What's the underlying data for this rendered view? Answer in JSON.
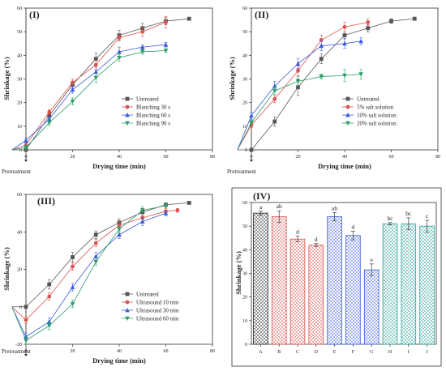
{
  "chart_data": [
    {
      "type": "line",
      "panel": "(I)",
      "xlabel": "Drying time (min)",
      "ylabel": "Shrinkage (%)",
      "xlim": [
        0,
        80
      ],
      "ylim": [
        0,
        60
      ],
      "xticks": [
        0,
        20,
        40,
        60,
        80
      ],
      "yticks": [
        0,
        10,
        20,
        30,
        40,
        50,
        60
      ],
      "pretreatment_label": "Pretreatment",
      "legend_position": "center-right",
      "series": [
        {
          "name": "Untreated",
          "color": "#555555",
          "marker": "square",
          "x": [
            0,
            10,
            20,
            30,
            40,
            50,
            60,
            70
          ],
          "y": [
            0,
            14.5,
            27.5,
            38.5,
            48.5,
            51.5,
            54.5,
            55.5
          ],
          "err": [
            0,
            1.2,
            1.5,
            2.5,
            2,
            2,
            1.5,
            0.5
          ]
        },
        {
          "name": "Blanching 30 s",
          "color": "#d9534f",
          "marker": "circle",
          "x": [
            0,
            10,
            20,
            30,
            40,
            50,
            60
          ],
          "y": [
            2,
            16,
            28.5,
            36,
            47.5,
            50,
            54
          ],
          "err": [
            1,
            1,
            1.5,
            2,
            1.5,
            2,
            2.5
          ]
        },
        {
          "name": "Blanching 60 s",
          "color": "#3b5bdb",
          "marker": "triangle",
          "x": [
            0,
            10,
            20,
            30,
            40,
            50,
            60
          ],
          "y": [
            4,
            13,
            25.5,
            33,
            41.5,
            43.5,
            44.5
          ],
          "err": [
            1,
            1,
            1.5,
            2,
            2,
            1,
            1
          ]
        },
        {
          "name": "Blanching 90 s",
          "color": "#2e9e6b",
          "marker": "triangle-down",
          "x": [
            0,
            10,
            20,
            30,
            40,
            50,
            60
          ],
          "y": [
            1,
            11.5,
            20.5,
            30.5,
            39,
            41.5,
            42
          ],
          "err": [
            1,
            1.2,
            1.5,
            2,
            1.5,
            1,
            0.8
          ]
        }
      ]
    },
    {
      "type": "line",
      "panel": "(II)",
      "xlabel": "Drying time (min)",
      "ylabel": "Shrinkage (%)",
      "xlim": [
        0,
        80
      ],
      "ylim": [
        0,
        60
      ],
      "xticks": [
        0,
        20,
        40,
        60,
        80
      ],
      "yticks": [
        0,
        10,
        20,
        30,
        40,
        50,
        60
      ],
      "pretreatment_label": "Pretreatment",
      "legend_position": "center-right",
      "series": [
        {
          "name": "Untreated",
          "color": "#555555",
          "marker": "square",
          "x": [
            0,
            10,
            20,
            30,
            40,
            50,
            60,
            70
          ],
          "y": [
            0,
            12,
            26.5,
            38.5,
            48.5,
            51.5,
            54.5,
            55.5
          ],
          "err": [
            0,
            2,
            3.5,
            2,
            1.5,
            1.5,
            1,
            0.5
          ]
        },
        {
          "name": "5% salt solution",
          "color": "#d9534f",
          "marker": "circle",
          "x": [
            0,
            10,
            20,
            30,
            40,
            50
          ],
          "y": [
            10.5,
            21.5,
            33.5,
            46.5,
            52,
            54
          ],
          "err": [
            1,
            1.5,
            2,
            2,
            2,
            1.5
          ]
        },
        {
          "name": "10% salt solution",
          "color": "#3b5bdb",
          "marker": "triangle",
          "x": [
            0,
            10,
            20,
            30,
            40,
            47
          ],
          "y": [
            14.5,
            27,
            36.5,
            44,
            45,
            46
          ],
          "err": [
            1.5,
            2,
            2,
            2,
            2,
            1.5
          ]
        },
        {
          "name": "20% salt solution",
          "color": "#2e9e6b",
          "marker": "triangle-down",
          "x": [
            0,
            10,
            20,
            30,
            40,
            47
          ],
          "y": [
            11.5,
            25,
            29,
            31,
            31.5,
            32
          ],
          "err": [
            1,
            1.5,
            2,
            1,
            2.5,
            2
          ]
        }
      ]
    },
    {
      "type": "line",
      "panel": "(III)",
      "xlabel": "Drying time (min)",
      "ylabel": "Shrinkage (%)",
      "xlim": [
        0,
        80
      ],
      "ylim": [
        -20,
        60
      ],
      "xticks": [
        0,
        20,
        40,
        60,
        80
      ],
      "yticks": [
        -20,
        0,
        20,
        40,
        60
      ],
      "pretreatment_label": "Pretreatment",
      "legend_position": "bottom-right",
      "series": [
        {
          "name": "Untreated",
          "color": "#555555",
          "marker": "square",
          "x": [
            0,
            10,
            20,
            30,
            40,
            50,
            60,
            70
          ],
          "y": [
            0,
            12,
            26.5,
            38.5,
            45,
            50.5,
            54.5,
            55.5
          ],
          "err": [
            0,
            2.5,
            2.5,
            2,
            2,
            2,
            1,
            0.5
          ]
        },
        {
          "name": "Ultrasound 10 min",
          "color": "#d9534f",
          "marker": "circle",
          "x": [
            0,
            10,
            20,
            30,
            40,
            50,
            60,
            65
          ],
          "y": [
            -7,
            5.5,
            21.5,
            34,
            43.5,
            47.5,
            51,
            51.5
          ],
          "err": [
            2,
            2,
            2,
            2,
            2,
            2,
            1.5,
            1
          ]
        },
        {
          "name": "Ultrasound 30 min",
          "color": "#3b5bdb",
          "marker": "triangle",
          "x": [
            0,
            10,
            20,
            30,
            40,
            50,
            60
          ],
          "y": [
            -16,
            -8,
            10.5,
            27,
            38.5,
            45.5,
            50
          ],
          "err": [
            2,
            2,
            2,
            2,
            2,
            2,
            1.5
          ]
        },
        {
          "name": "Ultrasound 60 min",
          "color": "#2e9e6b",
          "marker": "triangle-down",
          "x": [
            0,
            10,
            20,
            30,
            40,
            50,
            60
          ],
          "y": [
            -18,
            -10,
            1.5,
            24,
            41.5,
            51.5,
            54
          ],
          "err": [
            2,
            2,
            2,
            2,
            2,
            2,
            1
          ]
        }
      ]
    },
    {
      "type": "bar",
      "panel": "(IV)",
      "xlabel": "",
      "ylabel": "Shrinkage (%)",
      "ylim": [
        0,
        60
      ],
      "yticks": [
        0,
        10,
        20,
        30,
        40,
        50,
        60
      ],
      "categories": [
        "A",
        "B",
        "C",
        "D",
        "E",
        "F",
        "G",
        "H",
        "I",
        "J"
      ],
      "values": [
        55.5,
        54,
        44.5,
        42,
        54,
        46,
        31.5,
        51,
        51,
        50
      ],
      "errors": [
        0.8,
        2.5,
        1.2,
        0.6,
        1.8,
        1.8,
        2.5,
        0.5,
        2.5,
        2.5
      ],
      "letters": [
        "a",
        "ab",
        "d",
        "d",
        "ab",
        "d",
        "e",
        "bc",
        "bc",
        "c"
      ],
      "colors": [
        "#222222",
        "#d9534f",
        "#d9534f",
        "#d9534f",
        "#3b5bdb",
        "#3b5bdb",
        "#3b5bdb",
        "#2aa198",
        "#2aa198",
        "#2aa198"
      ]
    }
  ]
}
